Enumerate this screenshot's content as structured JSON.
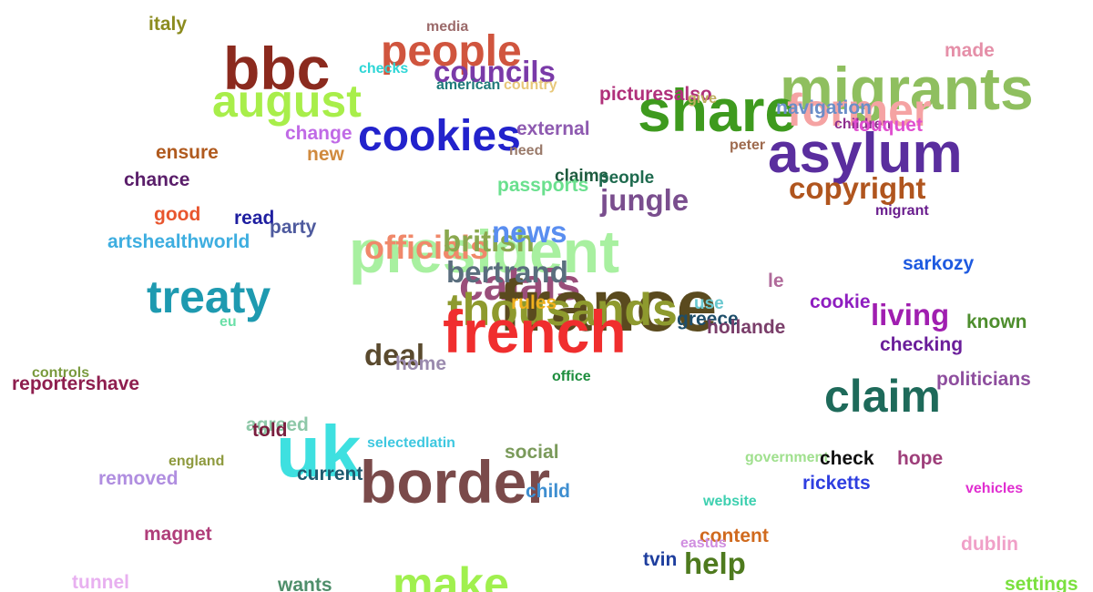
{
  "words": [
    {
      "text": "italy",
      "color": "#8b8b1e"
    },
    {
      "text": "media",
      "color": "#9b6a6a"
    },
    {
      "text": "bbc",
      "color": "#8b2a1e"
    },
    {
      "text": "people",
      "color": "#d0553e"
    },
    {
      "text": "checks",
      "color": "#2ed6d6"
    },
    {
      "text": "councils",
      "color": "#7a3aa8"
    },
    {
      "text": "american",
      "color": "#1e7a7a"
    },
    {
      "text": "country",
      "color": "#e8c87a"
    },
    {
      "text": "migrants",
      "color": "#8fbf5f"
    },
    {
      "text": "made",
      "color": "#e58fa8"
    },
    {
      "text": "august",
      "color": "#a8ee4a"
    },
    {
      "text": "share",
      "color": "#3e9a1e"
    },
    {
      "text": "former",
      "color": "#f5a3a3"
    },
    {
      "text": "picturesalso",
      "color": "#b0307a"
    },
    {
      "text": "give",
      "color": "#bfae5f"
    },
    {
      "text": "navigation",
      "color": "#6a8ec8"
    },
    {
      "text": "children",
      "color": "#8e2e8e"
    },
    {
      "text": "touquet",
      "color": "#e04fd0"
    },
    {
      "text": "change",
      "color": "#c06ae6"
    },
    {
      "text": "cookies",
      "color": "#2222cc"
    },
    {
      "text": "external",
      "color": "#8e5ab0"
    },
    {
      "text": "ensure",
      "color": "#b05a1e"
    },
    {
      "text": "new",
      "color": "#d08a3e"
    },
    {
      "text": "need",
      "color": "#9a7a6a"
    },
    {
      "text": "peter",
      "color": "#9e6a4e"
    },
    {
      "text": "asylum",
      "color": "#5a2e9e"
    },
    {
      "text": "chance",
      "color": "#5a1e6a"
    },
    {
      "text": "claims",
      "color": "#1e5a3e"
    },
    {
      "text": "people",
      "color": "#1e6a4e"
    },
    {
      "text": "passports",
      "color": "#6ae08e"
    },
    {
      "text": "copyright",
      "color": "#b0551e"
    },
    {
      "text": "jungle",
      "color": "#7a4e8e"
    },
    {
      "text": "good",
      "color": "#e8552e"
    },
    {
      "text": "read",
      "color": "#1e1ea0"
    },
    {
      "text": "party",
      "color": "#4e5a9e"
    },
    {
      "text": "migrant",
      "color": "#6a1e8e"
    },
    {
      "text": "artshealthworld",
      "color": "#3eaee0"
    },
    {
      "text": "president",
      "color": "#a8f0a0"
    },
    {
      "text": "officials",
      "color": "#f0886a"
    },
    {
      "text": "british",
      "color": "#8aa84e"
    },
    {
      "text": "news",
      "color": "#5a8ef0"
    },
    {
      "text": "calais",
      "color": "#9a4e7a"
    },
    {
      "text": "france",
      "color": "#5a4a1e"
    },
    {
      "text": "bertrand",
      "color": "#5a6e7e"
    },
    {
      "text": "sarkozy",
      "color": "#1e5ae0"
    },
    {
      "text": "treaty",
      "color": "#1e9ab0"
    },
    {
      "text": "thousands",
      "color": "#8e9a2e"
    },
    {
      "text": "rules",
      "color": "#f0b01e"
    },
    {
      "text": "use",
      "color": "#6ac8d0"
    },
    {
      "text": "le",
      "color": "#b06a9a"
    },
    {
      "text": "cookie",
      "color": "#8e1ec0"
    },
    {
      "text": "living",
      "color": "#a01eb0"
    },
    {
      "text": "greece",
      "color": "#1e4e6a"
    },
    {
      "text": "hollande",
      "color": "#7a3e6a"
    },
    {
      "text": "known",
      "color": "#4e8e2e"
    },
    {
      "text": "eu",
      "color": "#6ae0a8"
    },
    {
      "text": "french",
      "color": "#f02e2e"
    },
    {
      "text": "checking",
      "color": "#6a1e9a"
    },
    {
      "text": "deal",
      "color": "#5a4a2e"
    },
    {
      "text": "home",
      "color": "#9a8aae"
    },
    {
      "text": "controls",
      "color": "#7a9a3e"
    },
    {
      "text": "reportershave",
      "color": "#8e1e4e"
    },
    {
      "text": "office",
      "color": "#1e8e3e"
    },
    {
      "text": "politicians",
      "color": "#8e4e9e"
    },
    {
      "text": "claim",
      "color": "#1e6a5a"
    },
    {
      "text": "agreed",
      "color": "#8ec8a8"
    },
    {
      "text": "told",
      "color": "#7a1e3e"
    },
    {
      "text": "uk",
      "color": "#3ee0e0"
    },
    {
      "text": "selectedlatin",
      "color": "#3ec8e0"
    },
    {
      "text": "social",
      "color": "#7a9a5a"
    },
    {
      "text": "england",
      "color": "#8e9a3e"
    },
    {
      "text": "government",
      "color": "#a0e08e"
    },
    {
      "text": "check",
      "color": "#111111"
    },
    {
      "text": "hope",
      "color": "#9e3e7a"
    },
    {
      "text": "removed",
      "color": "#b08ee0"
    },
    {
      "text": "current",
      "color": "#1e5a6e"
    },
    {
      "text": "border",
      "color": "#7a4a4a"
    },
    {
      "text": "child",
      "color": "#3e8ed0"
    },
    {
      "text": "ricketts",
      "color": "#2e3ee0"
    },
    {
      "text": "vehicles",
      "color": "#e02ed0"
    },
    {
      "text": "website",
      "color": "#3ed0b0"
    },
    {
      "text": "magnet",
      "color": "#b03e7a"
    },
    {
      "text": "content",
      "color": "#d06a1e"
    },
    {
      "text": "eastus",
      "color": "#d08ee0"
    },
    {
      "text": "dublin",
      "color": "#f0a0c8"
    },
    {
      "text": "tvin",
      "color": "#1e3e9e"
    },
    {
      "text": "help",
      "color": "#4e7a1e"
    },
    {
      "text": "tunnel",
      "color": "#e8b0f0"
    },
    {
      "text": "wants",
      "color": "#4e8e6a"
    },
    {
      "text": "make",
      "color": "#a0f04e"
    },
    {
      "text": "settings",
      "color": "#7ae03e"
    }
  ]
}
